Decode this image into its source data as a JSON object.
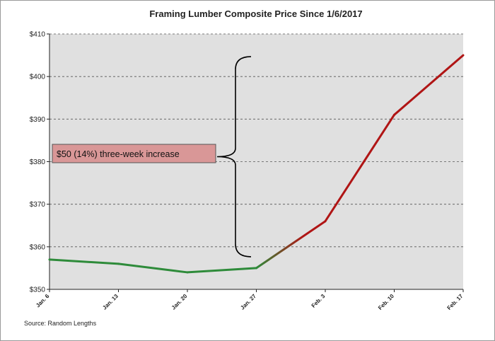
{
  "chart_data": {
    "type": "line",
    "title": "Framing Lumber Composite Price Since 1/6/2017",
    "categories": [
      "Jan. 6",
      "Jan. 13",
      "Jan. 20",
      "Jan. 27",
      "Feb. 3",
      "Feb. 10",
      "Feb. 17"
    ],
    "series": [
      {
        "values": [
          357,
          356,
          354,
          355,
          366,
          391,
          405
        ]
      }
    ],
    "ylim": [
      350,
      410
    ],
    "yticks": [
      "$350",
      "$360",
      "$370",
      "$380",
      "$390",
      "$400",
      "$410"
    ],
    "grid": true,
    "annotation": {
      "text": "$50 (14%) three-week increase",
      "from": 355,
      "to": 405
    },
    "source": "Source:  Random Lengths",
    "colors": {
      "plot_background": "#e0e0e0",
      "line_early": "#2e8b3a",
      "line_late": "#b01515",
      "annotation_fill": "#d99797"
    }
  }
}
